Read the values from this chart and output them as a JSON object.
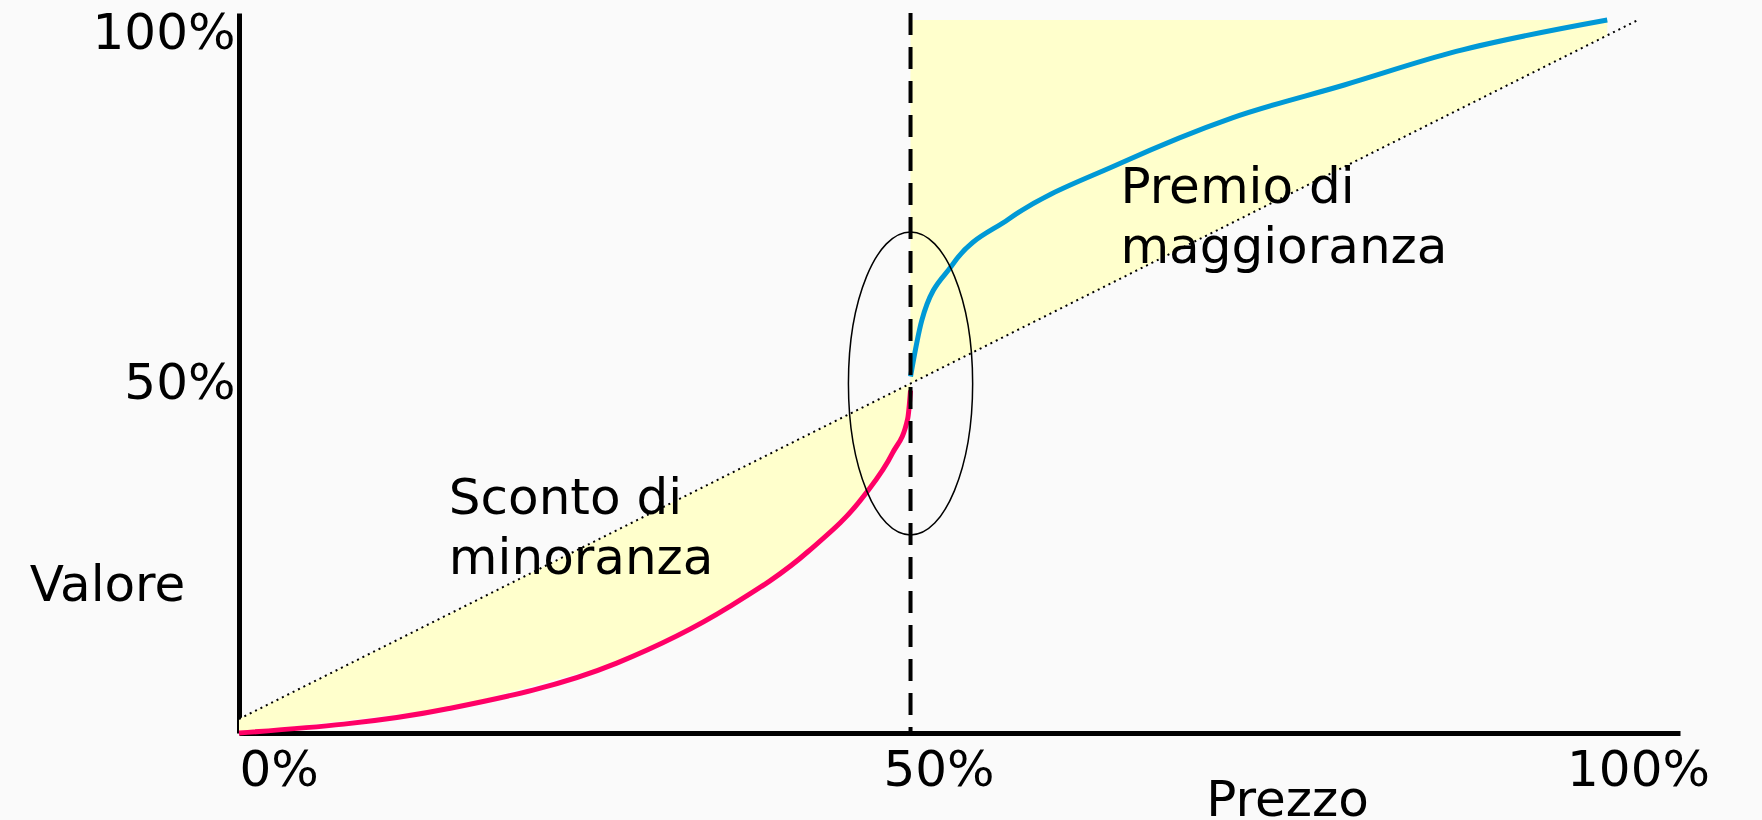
{
  "chart_data": {
    "type": "line",
    "xlabel": "Prezzo",
    "ylabel": "Valore",
    "xlim": [
      0,
      103
    ],
    "ylim": [
      0,
      103
    ],
    "xticks": [
      {
        "value": 0,
        "label": "0%"
      },
      {
        "value": 50,
        "label": "50%"
      },
      {
        "value": 100,
        "label": "100%"
      }
    ],
    "yticks": [
      {
        "value": 50,
        "label": "50%"
      },
      {
        "value": 100,
        "label": "100%"
      }
    ],
    "marker": "none",
    "series": [
      {
        "type": "line",
        "color": "#ff0066",
        "line_style": "solid",
        "x": [
          0,
          15,
          27,
          35,
          40.7,
          44.7,
          46.7,
          47.8,
          48
        ],
        "values": [
          0,
          3.5,
          10,
          18,
          26,
          34,
          40,
          45,
          49
        ],
        "lower": [
          0,
          3.5,
          10,
          18,
          26,
          34,
          40,
          45,
          49
        ],
        "upper": [
          2,
          17,
          29,
          37,
          42.7,
          46.7,
          48.7,
          49.8,
          50
        ]
      },
      {
        "type": "line",
        "color": "#0099d6",
        "line_style": "solid",
        "x": [
          48,
          48.8,
          51,
          55,
          63,
          71,
          79,
          87,
          97.8
        ],
        "values": [
          51,
          59,
          67,
          73.5,
          81.5,
          88,
          92.7,
          97.5,
          102
        ],
        "lower": [
          50,
          50.8,
          53,
          57,
          65,
          73,
          81,
          89,
          99.8
        ],
        "upper": [
          102,
          102,
          102,
          102,
          102,
          102,
          102,
          102,
          102
        ]
      },
      {
        "type": "line",
        "color": "#000000",
        "line_style": "dotted",
        "x": [
          0,
          100
        ],
        "values": [
          2,
          102
        ]
      }
    ],
    "ref_lines": [
      {
        "axis": "x",
        "value": 48,
        "color": "#000000",
        "line_style": "dashed"
      }
    ],
    "annotations": [
      "Sconto di\nminoranza",
      "Premio di\nmaggioranza"
    ]
  }
}
